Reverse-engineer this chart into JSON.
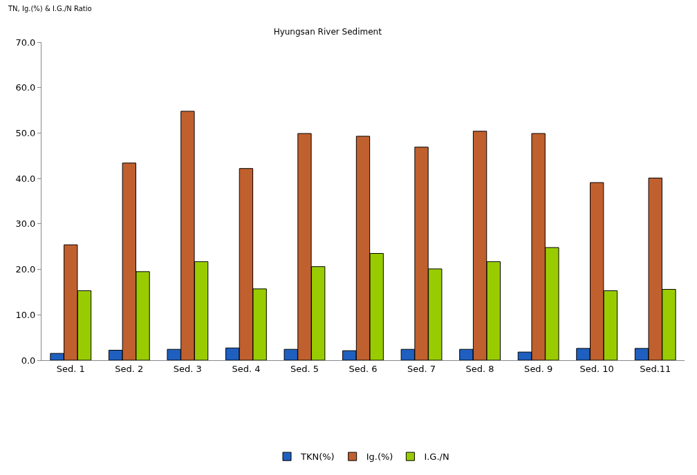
{
  "chart_data": {
    "type": "bar",
    "title": "Hyungsan River Sediment",
    "ylabel": "TN, Ig.(%) & I.G./N Ratio",
    "categories": [
      "Sed. 1",
      "Sed. 2",
      "Sed. 3",
      "Sed. 4",
      "Sed. 5",
      "Sed. 6",
      "Sed. 7",
      "Sed. 8",
      "Sed. 9",
      "Sed. 10",
      "Sed.11"
    ],
    "series": [
      {
        "name": "TKN(%)",
        "color": "#1f5fc0",
        "values": [
          1.5,
          2.2,
          2.4,
          2.7,
          2.4,
          2.1,
          2.4,
          2.4,
          1.8,
          2.6,
          2.6
        ]
      },
      {
        "name": "Ig.(%)",
        "color": "#c0602f",
        "values": [
          25.4,
          43.4,
          54.8,
          42.2,
          49.9,
          49.3,
          46.9,
          50.4,
          49.9,
          39.1,
          40.1
        ]
      },
      {
        "name": "I.G./N",
        "color": "#99cc00",
        "values": [
          15.3,
          19.5,
          21.7,
          15.7,
          20.6,
          23.5,
          20.1,
          21.7,
          24.8,
          15.3,
          15.6
        ]
      }
    ],
    "ylim": [
      0,
      70
    ],
    "yticks": [
      {
        "value": 0,
        "label": "0.0"
      },
      {
        "value": 10,
        "label": "10.0"
      },
      {
        "value": 20,
        "label": "20.0"
      },
      {
        "value": 30,
        "label": "30.0"
      },
      {
        "value": 40,
        "label": "40.0"
      },
      {
        "value": 50,
        "label": "50.0"
      },
      {
        "value": 60,
        "label": "60.0"
      },
      {
        "value": 70,
        "label": "70.0"
      }
    ],
    "grid": false,
    "legend": "bottom"
  }
}
